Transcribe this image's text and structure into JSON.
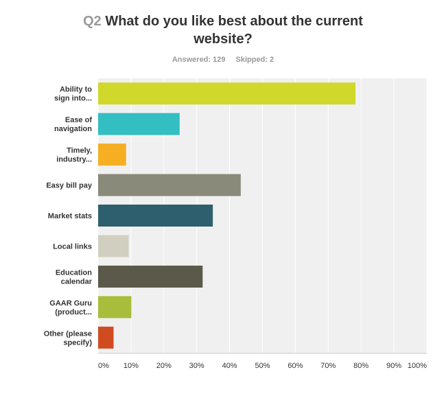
{
  "title": {
    "qnum": "Q2",
    "text": "What do you like best about the current website?"
  },
  "stats": {
    "answered": "Answered: 129",
    "skipped": "Skipped: 2"
  },
  "chart_data": {
    "type": "bar",
    "orientation": "horizontal",
    "categories": [
      [
        "Ability to",
        "sign into..."
      ],
      [
        "Ease of",
        "navigation"
      ],
      [
        "Timely,",
        "industry..."
      ],
      [
        "Easy bill pay"
      ],
      [
        "Market stats"
      ],
      [
        "Local links"
      ],
      [
        "Education",
        "calendar"
      ],
      [
        "GAAR Guru",
        "(product..."
      ],
      [
        "Other (please",
        "specify)"
      ]
    ],
    "values": [
      78.3,
      24.8,
      8.5,
      43.4,
      34.9,
      9.3,
      31.8,
      10.1,
      4.7
    ],
    "colors": [
      "#d0d82b",
      "#33bec1",
      "#f6ae22",
      "#8a8a7a",
      "#2e5f6e",
      "#d1cfbf",
      "#5b5a4a",
      "#a8bd3b",
      "#d14b21"
    ],
    "xticks": [
      "0%",
      "10%",
      "20%",
      "30%",
      "40%",
      "50%",
      "60%",
      "70%",
      "80%",
      "90%",
      "100%"
    ],
    "xlim": [
      0,
      100
    ],
    "grid": true,
    "background": "#f0f0f0",
    "gridline_color": "#ffffff"
  }
}
